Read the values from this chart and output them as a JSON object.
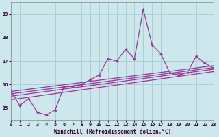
{
  "xlabel": "Windchill (Refroidissement éolien,°C)",
  "background_color": "#cce8ed",
  "line_color": "#993399",
  "x_values": [
    0,
    1,
    2,
    3,
    4,
    5,
    6,
    7,
    8,
    9,
    10,
    11,
    12,
    13,
    14,
    15,
    16,
    17,
    18,
    19,
    20,
    21,
    22,
    23
  ],
  "y_values": [
    15.7,
    15.1,
    15.4,
    14.8,
    14.7,
    14.9,
    15.9,
    15.9,
    16.0,
    16.2,
    16.4,
    17.1,
    17.0,
    17.5,
    17.1,
    19.2,
    17.7,
    17.3,
    16.5,
    16.4,
    16.5,
    17.2,
    16.9,
    16.7
  ],
  "xlim": [
    0,
    23
  ],
  "ylim": [
    14.5,
    19.5
  ],
  "yticks": [
    15,
    16,
    17,
    18,
    19
  ],
  "xticks": [
    0,
    1,
    2,
    3,
    4,
    5,
    6,
    7,
    8,
    9,
    10,
    11,
    12,
    13,
    14,
    15,
    16,
    17,
    18,
    19,
    20,
    21,
    22,
    23
  ],
  "grid_color": "#aacdd4",
  "regression_lines": [
    {
      "x0": 0,
      "y0": 15.35,
      "x1": 23,
      "y1": 16.55
    },
    {
      "x0": 0,
      "y0": 15.5,
      "x1": 23,
      "y1": 16.65
    },
    {
      "x0": 0,
      "y0": 15.6,
      "x1": 23,
      "y1": 16.72
    },
    {
      "x0": 0,
      "y0": 15.7,
      "x1": 23,
      "y1": 16.8
    }
  ]
}
